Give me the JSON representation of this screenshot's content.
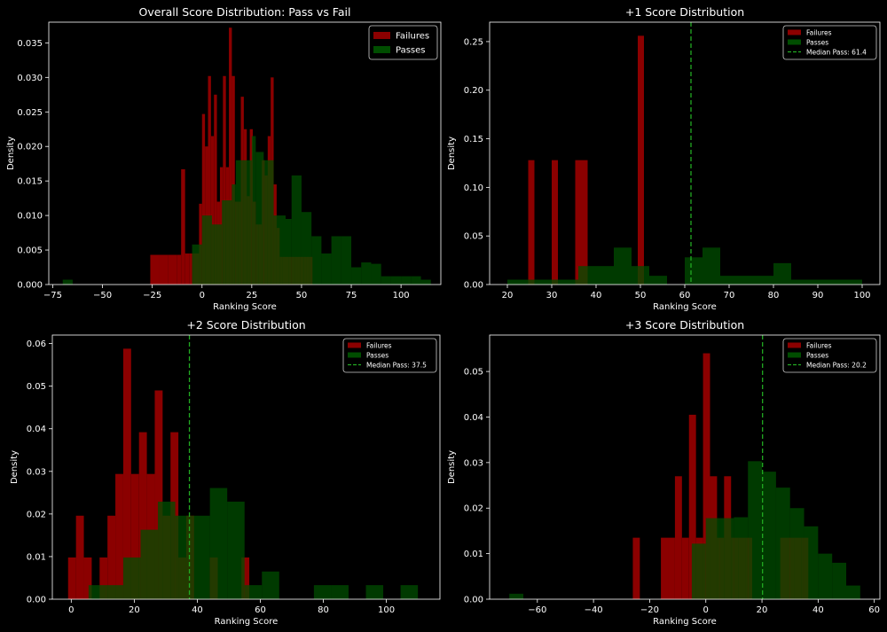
{
  "colors": {
    "background": "#000000",
    "failures": "#8b0000",
    "passes": "#004d00",
    "overlap": "#464d00",
    "median_line": "#22aa22",
    "axes": "#ffffff"
  },
  "chart_data": [
    {
      "type": "histogram",
      "title": "Overall Score Distribution: Pass vs Fail",
      "xlabel": "Ranking Score",
      "ylabel": "Density",
      "xlim": [
        -77,
        120
      ],
      "ylim": [
        0,
        0.038
      ],
      "xticks": [
        -75,
        -50,
        -25,
        0,
        25,
        50,
        75,
        100
      ],
      "yticks": [
        0,
        0.005,
        0.01,
        0.015,
        0.02,
        0.025,
        0.03,
        0.035
      ],
      "ytick_labels": [
        "0.000",
        "0.005",
        "0.010",
        "0.015",
        "0.020",
        "0.025",
        "0.030",
        "0.035"
      ],
      "grid": false,
      "legend": {
        "position": "top-right",
        "size": "large",
        "entries": [
          "Failures",
          "Passes"
        ]
      },
      "series": [
        {
          "name": "Failures",
          "bins": [
            [
              -26,
              -21.5
            ],
            [
              -21.5,
              -17
            ],
            [
              -17,
              -12.5
            ],
            [
              -12.5,
              -10.5
            ],
            [
              -10.5,
              -8.5
            ],
            [
              -8.5,
              -6.5
            ],
            [
              -6.5,
              -4.5
            ],
            [
              -4.5,
              -1.5
            ],
            [
              -1.5,
              0
            ],
            [
              0,
              1.5
            ],
            [
              1.5,
              3
            ],
            [
              3,
              4.5
            ],
            [
              4.5,
              6
            ],
            [
              6,
              7.5
            ],
            [
              7.5,
              9
            ],
            [
              9,
              10.5
            ],
            [
              10.5,
              12
            ],
            [
              12,
              13.5
            ],
            [
              13.5,
              15
            ],
            [
              15,
              16.5
            ],
            [
              16.5,
              18
            ],
            [
              18,
              19.5
            ],
            [
              19.5,
              21
            ],
            [
              21,
              22.5
            ],
            [
              22.5,
              24
            ],
            [
              24,
              25.5
            ],
            [
              25.5,
              27
            ],
            [
              27,
              28.5
            ],
            [
              28.5,
              30
            ],
            [
              30,
              31.5
            ],
            [
              31.5,
              33
            ],
            [
              33,
              34.5
            ],
            [
              34.5,
              36
            ],
            [
              36,
              37.5
            ],
            [
              37.5,
              39
            ],
            [
              39,
              40.5
            ],
            [
              40.5,
              42
            ],
            [
              42,
              43.5
            ],
            [
              43.5,
              45
            ],
            [
              45,
              46.5
            ],
            [
              46.5,
              48
            ],
            [
              48,
              49.5
            ],
            [
              49.5,
              51
            ],
            [
              51,
              52.5
            ],
            [
              52.5,
              54
            ],
            [
              54,
              55.5
            ]
          ],
          "values": [
            0.0043,
            0.0043,
            0.0043,
            0.0043,
            0.0167,
            0.0045,
            0.0045,
            0.0045,
            0.0117,
            0.0247,
            0.02,
            0.0302,
            0.0215,
            0.0275,
            0.012,
            0.017,
            0.0302,
            0.017,
            0.0372,
            0.0302,
            0.012,
            0.012,
            0.0272,
            0.0225,
            0.0128,
            0.0225,
            0.012,
            0.0087,
            0.0087,
            0.018,
            0.0158,
            0.0215,
            0.03,
            0.0145,
            0.0082,
            0.004,
            0.004,
            0.004,
            0.004,
            0.004,
            0.004,
            0.004,
            0.004,
            0.004,
            0.004,
            0.004
          ]
        },
        {
          "name": "Passes",
          "bins": [
            [
              -70,
              -65
            ],
            [
              -5,
              0
            ],
            [
              0,
              5
            ],
            [
              5,
              10
            ],
            [
              10,
              15
            ],
            [
              15,
              17
            ],
            [
              17,
              20
            ],
            [
              20,
              25
            ],
            [
              25,
              27
            ],
            [
              27,
              31
            ],
            [
              31,
              36
            ],
            [
              36,
              42
            ],
            [
              42,
              45
            ],
            [
              45,
              50
            ],
            [
              50,
              55
            ],
            [
              55,
              60
            ],
            [
              60,
              65
            ],
            [
              65,
              70
            ],
            [
              70,
              75
            ],
            [
              75,
              80
            ],
            [
              80,
              85
            ],
            [
              85,
              90
            ],
            [
              90,
              95
            ],
            [
              95,
              100
            ],
            [
              100,
              105
            ],
            [
              105,
              110
            ],
            [
              110,
              115
            ]
          ],
          "values": [
            0.0007,
            0.0058,
            0.01,
            0.0087,
            0.0122,
            0.0145,
            0.018,
            0.018,
            0.0215,
            0.0192,
            0.018,
            0.01,
            0.0095,
            0.0158,
            0.0105,
            0.007,
            0.0045,
            0.007,
            0.007,
            0.0025,
            0.0032,
            0.003,
            0.0012,
            0.0012,
            0.0012,
            0.0012,
            0.0007
          ]
        }
      ]
    },
    {
      "type": "histogram",
      "title": "+1 Score Distribution",
      "xlabel": "Ranking Score",
      "ylabel": "Density",
      "xlim": [
        16,
        104
      ],
      "ylim": [
        0,
        0.27
      ],
      "xticks": [
        20,
        30,
        40,
        50,
        60,
        70,
        80,
        90,
        100
      ],
      "yticks": [
        0,
        0.05,
        0.1,
        0.15,
        0.2,
        0.25
      ],
      "ytick_labels": [
        "0.00",
        "0.05",
        "0.10",
        "0.15",
        "0.20",
        "0.25"
      ],
      "grid": false,
      "median_pass": 61.4,
      "legend": {
        "position": "top-right",
        "size": "small",
        "entries": [
          "Failures",
          "Passes",
          "Median Pass: 61.4"
        ]
      },
      "series": [
        {
          "name": "Failures",
          "bins": [
            [
              24.7,
              26.1
            ],
            [
              30,
              31.4
            ],
            [
              35.3,
              38.1
            ],
            [
              49.4,
              50.8
            ]
          ],
          "values": [
            0.128,
            0.128,
            0.128,
            0.256
          ]
        },
        {
          "name": "Passes",
          "bins": [
            [
              20,
              24
            ],
            [
              24,
              28
            ],
            [
              28,
              32
            ],
            [
              32,
              36
            ],
            [
              36,
              40
            ],
            [
              40,
              44
            ],
            [
              44,
              48
            ],
            [
              48,
              52
            ],
            [
              52,
              56
            ],
            [
              56,
              60
            ],
            [
              60,
              64
            ],
            [
              64,
              68
            ],
            [
              68,
              72
            ],
            [
              72,
              76
            ],
            [
              76,
              80
            ],
            [
              80,
              84
            ],
            [
              84,
              88
            ],
            [
              88,
              92
            ],
            [
              92,
              96
            ],
            [
              96,
              100
            ]
          ],
          "values": [
            0.005,
            0.005,
            0.005,
            0.005,
            0.019,
            0.019,
            0.038,
            0.019,
            0.009,
            0.0,
            0.028,
            0.038,
            0.009,
            0.009,
            0.009,
            0.022,
            0.005,
            0.005,
            0.005,
            0.005
          ]
        }
      ]
    },
    {
      "type": "histogram",
      "title": "+2 Score Distribution",
      "xlabel": "Ranking Score",
      "ylabel": "Density",
      "xlim": [
        -6,
        117
      ],
      "ylim": [
        0,
        0.062
      ],
      "xticks": [
        0,
        20,
        40,
        60,
        80,
        100
      ],
      "yticks": [
        0,
        0.01,
        0.02,
        0.03,
        0.04,
        0.05,
        0.06
      ],
      "ytick_labels": [
        "0.00",
        "0.01",
        "0.02",
        "0.03",
        "0.04",
        "0.05",
        "0.06"
      ],
      "grid": false,
      "median_pass": 37.5,
      "legend": {
        "position": "top-right",
        "size": "small",
        "entries": [
          "Failures",
          "Passes",
          "Median Pass: 37.5"
        ]
      },
      "series": [
        {
          "name": "Failures",
          "bins": [
            [
              -1,
              1.5
            ],
            [
              1.5,
              4
            ],
            [
              4,
              6.5
            ],
            [
              6.5,
              9
            ],
            [
              9,
              11.5
            ],
            [
              11.5,
              14
            ],
            [
              14,
              16.5
            ],
            [
              16.5,
              19
            ],
            [
              19,
              21.5
            ],
            [
              21.5,
              24
            ],
            [
              24,
              26.5
            ],
            [
              26.5,
              29
            ],
            [
              29,
              31.5
            ],
            [
              31.5,
              34
            ],
            [
              34,
              36.5
            ],
            [
              36.5,
              39
            ],
            [
              39,
              41.5
            ],
            [
              41.5,
              44
            ],
            [
              44,
              46.5
            ],
            [
              46.5,
              49
            ],
            [
              49,
              51.5
            ],
            [
              51.5,
              54
            ],
            [
              54,
              56.5
            ],
            [
              56.5,
              59
            ],
            [
              59,
              61.5
            ]
          ],
          "values": [
            0.0098,
            0.0196,
            0.0098,
            0.0,
            0.0098,
            0.0196,
            0.0294,
            0.0588,
            0.0294,
            0.0392,
            0.0294,
            0.049,
            0.0196,
            0.0392,
            0.0098,
            0.0196,
            0.0,
            0.0,
            0.0098,
            0.0,
            0.0,
            0.0,
            0.0098,
            0.0,
            0.0
          ]
        },
        {
          "name": "Passes",
          "bins": [
            [
              5.5,
              11
            ],
            [
              11,
              16.5
            ],
            [
              16.5,
              22
            ],
            [
              22,
              27.5
            ],
            [
              27.5,
              33
            ],
            [
              33,
              38.5
            ],
            [
              38.5,
              44
            ],
            [
              44,
              49.5
            ],
            [
              49.5,
              55
            ],
            [
              55,
              60.5
            ],
            [
              60.5,
              66
            ],
            [
              66,
              71.5
            ],
            [
              71.5,
              77
            ],
            [
              77,
              82.5
            ],
            [
              82.5,
              88
            ],
            [
              88,
              93.5
            ],
            [
              93.5,
              99
            ],
            [
              99,
              104.5
            ],
            [
              104.5,
              110
            ]
          ],
          "values": [
            0.0033,
            0.0033,
            0.0098,
            0.0163,
            0.0229,
            0.0196,
            0.0196,
            0.0261,
            0.0229,
            0.0033,
            0.0065,
            0.0,
            0.0,
            0.0033,
            0.0033,
            0.0,
            0.0033,
            0.0,
            0.0033
          ]
        }
      ]
    },
    {
      "type": "histogram",
      "title": "+3 Score Distribution",
      "xlabel": "Ranking Score",
      "ylabel": "Density",
      "xlim": [
        -77,
        62
      ],
      "ylim": [
        0,
        0.058
      ],
      "xticks": [
        -60,
        -40,
        -20,
        0,
        20,
        40,
        60
      ],
      "yticks": [
        0,
        0.01,
        0.02,
        0.03,
        0.04,
        0.05
      ],
      "ytick_labels": [
        "0.00",
        "0.01",
        "0.02",
        "0.03",
        "0.04",
        "0.05"
      ],
      "grid": false,
      "median_pass": 20.2,
      "legend": {
        "position": "top-right",
        "size": "small",
        "entries": [
          "Failures",
          "Passes",
          "Median Pass: 20.2"
        ]
      },
      "series": [
        {
          "name": "Failures",
          "bins": [
            [
              -26,
              -23.5
            ],
            [
              -23.5,
              -21
            ],
            [
              -21,
              -18.5
            ],
            [
              -18.5,
              -16
            ],
            [
              -16,
              -13.5
            ],
            [
              -13.5,
              -11
            ],
            [
              -11,
              -8.5
            ],
            [
              -8.5,
              -6
            ],
            [
              -6,
              -3.5
            ],
            [
              -3.5,
              -1
            ],
            [
              -1,
              1.5
            ],
            [
              1.5,
              4
            ],
            [
              4,
              6.5
            ],
            [
              6.5,
              9
            ],
            [
              9,
              11.5
            ],
            [
              11.5,
              14
            ],
            [
              14,
              16.5
            ],
            [
              16.5,
              19
            ],
            [
              19,
              21.5
            ],
            [
              21.5,
              24
            ],
            [
              24,
              26.5
            ],
            [
              26.5,
              29
            ],
            [
              29,
              31.5
            ],
            [
              31.5,
              34
            ],
            [
              34,
              36.5
            ]
          ],
          "values": [
            0.0135,
            0.0,
            0.0,
            0.0,
            0.0135,
            0.0135,
            0.027,
            0.0135,
            0.0405,
            0.0135,
            0.054,
            0.027,
            0.0135,
            0.027,
            0.0135,
            0.0135,
            0.0135,
            0.0,
            0.0,
            0.0,
            0.0,
            0.0135,
            0.0135,
            0.0135,
            0.0135
          ]
        },
        {
          "name": "Passes",
          "bins": [
            [
              -70,
              -65
            ],
            [
              -5,
              0
            ],
            [
              0,
              5
            ],
            [
              5,
              10
            ],
            [
              10,
              15
            ],
            [
              15,
              20
            ],
            [
              20,
              25
            ],
            [
              25,
              30
            ],
            [
              30,
              35
            ],
            [
              35,
              40
            ],
            [
              40,
              45
            ],
            [
              45,
              50
            ],
            [
              50,
              55
            ]
          ],
          "values": [
            0.0012,
            0.0122,
            0.0178,
            0.0178,
            0.018,
            0.0303,
            0.028,
            0.0245,
            0.02,
            0.016,
            0.01,
            0.008,
            0.003
          ]
        }
      ]
    }
  ]
}
